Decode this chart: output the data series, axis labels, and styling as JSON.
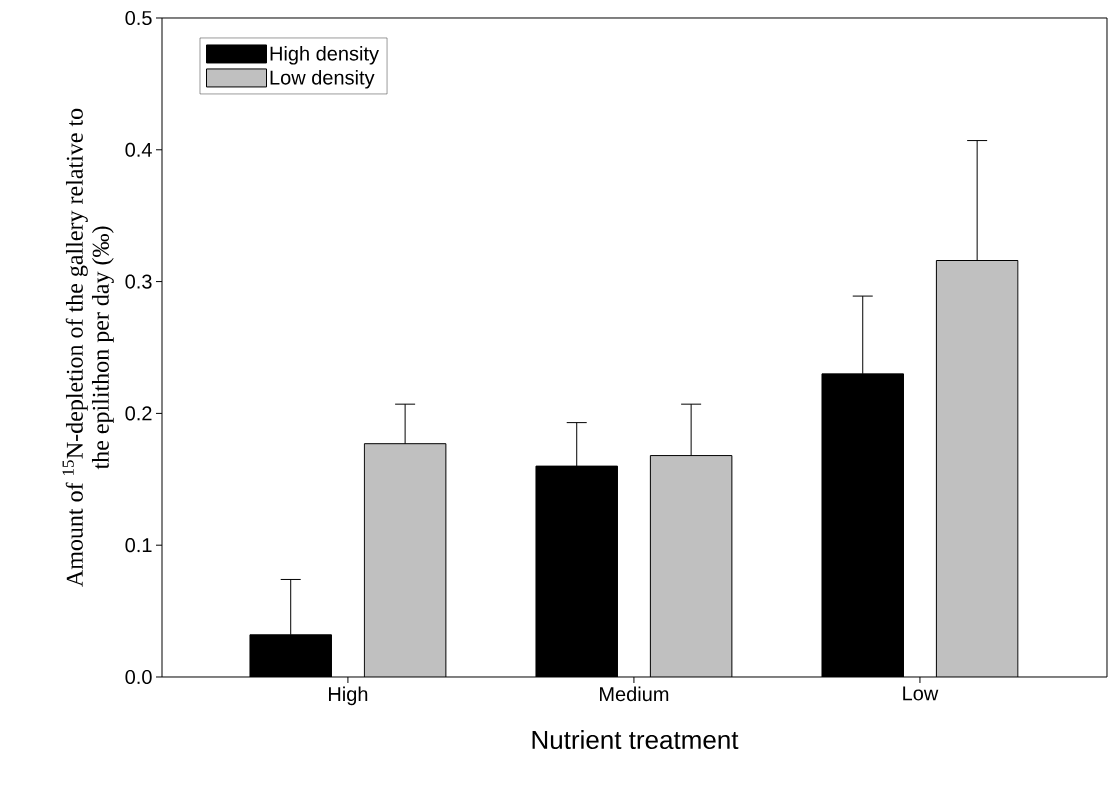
{
  "chart_data": {
    "type": "bar",
    "categories": [
      "High",
      "Medium",
      "Low"
    ],
    "xlabel": "Nutrient treatment",
    "ylabel": "Amount of $^{15}$N-depletion of the gallery relative to the epilithon per day (‰)",
    "series": [
      {
        "name": "High density",
        "color": "#000000",
        "values": [
          0.032,
          0.16,
          0.23
        ],
        "errors": [
          [
            0.032,
            0.074
          ],
          [
            0.16,
            0.193
          ],
          [
            0.23,
            0.289
          ]
        ]
      },
      {
        "name": "Low density",
        "color": "#c0c0c0",
        "values": [
          0.177,
          0.168,
          0.316
        ],
        "errors": [
          [
            0.177,
            0.207
          ],
          [
            0.168,
            0.207
          ],
          [
            0.316,
            0.407
          ]
        ]
      }
    ],
    "ylim": [
      0,
      0.5
    ],
    "yticks": [
      {
        "value": 0,
        "label": "0.0"
      },
      {
        "value": 0.1,
        "label": "0.1"
      },
      {
        "value": 0.2,
        "label": "0.2"
      },
      {
        "value": 0.3,
        "label": "0.3"
      },
      {
        "value": 0.4,
        "label": "0.4"
      },
      {
        "value": 0.5,
        "label": "0.5"
      }
    ],
    "legend": "top left",
    "grid": false
  }
}
